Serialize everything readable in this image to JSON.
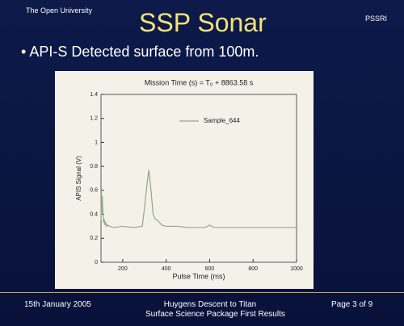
{
  "slide": {
    "logo": "The Open University",
    "title": "SSP Sonar",
    "partner": "PSSRI",
    "bullet": "API-S Detected surface from 100m.",
    "footer_date": "15th January 2005",
    "footer_center": [
      "Huygens Descent to Titan",
      "Surface Science Package First Results"
    ],
    "footer_page": "Page 3 of 9"
  },
  "chart_data": {
    "type": "line",
    "title": "Mission Time (s) = T₀ + 8863.58 s",
    "x_label": "Pulse Time (ms)",
    "y_label": "APIS Signal (V)",
    "x": [
      100,
      102,
      104,
      106,
      108,
      110,
      112,
      115,
      118,
      122,
      126,
      130,
      140,
      160,
      200,
      250,
      290,
      300,
      310,
      320,
      330,
      340,
      350,
      360,
      380,
      400,
      450,
      500,
      550,
      580,
      600,
      620,
      650,
      700,
      800,
      900,
      1000
    ],
    "series": [
      {
        "name": "Sample_644",
        "color": "#8fa88a",
        "values": [
          0.35,
          0.6,
          0.4,
          0.55,
          0.45,
          0.38,
          0.33,
          0.36,
          0.31,
          0.33,
          0.3,
          0.31,
          0.3,
          0.29,
          0.3,
          0.29,
          0.3,
          0.45,
          0.62,
          0.77,
          0.6,
          0.4,
          0.36,
          0.35,
          0.31,
          0.3,
          0.3,
          0.29,
          0.29,
          0.29,
          0.31,
          0.29,
          0.29,
          0.29,
          0.29,
          0.29,
          0.29
        ]
      }
    ],
    "xlim": [
      100,
      1000
    ],
    "xticks": [
      200,
      400,
      600,
      800,
      1000
    ],
    "ylim": [
      0,
      1.4
    ],
    "yticks": [
      0,
      0.2,
      0.4,
      0.6,
      0.8,
      1,
      1.2,
      1.4
    ]
  }
}
